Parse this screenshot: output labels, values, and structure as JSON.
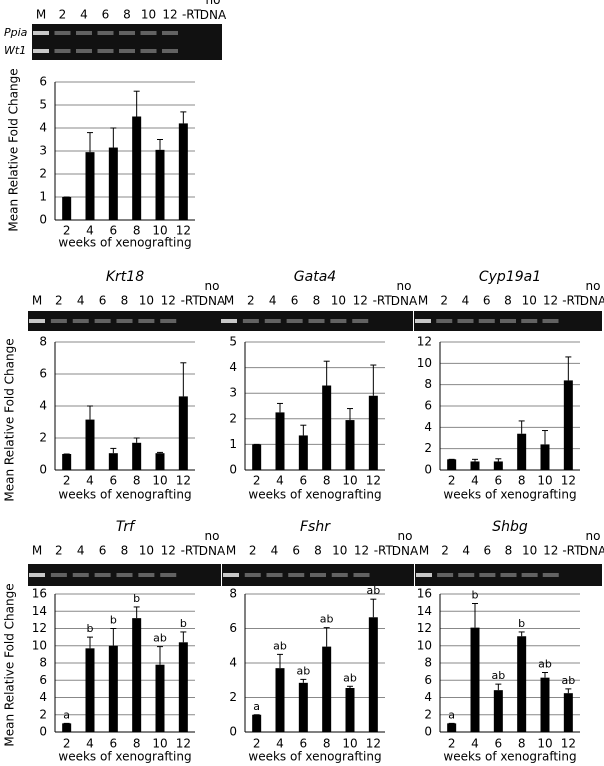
{
  "chart_data": [
    {
      "type": "bar",
      "y_label": "Mean Relative Fold Change",
      "x_label": "weeks of xenografting",
      "gel_rows": [
        "Ppia",
        "Wt1"
      ],
      "lanes": [
        "M",
        "2",
        "4",
        "6",
        "8",
        "10",
        "12",
        "-RT",
        "no DNA"
      ],
      "categories": [
        "2",
        "4",
        "6",
        "8",
        "10",
        "12"
      ],
      "series": [
        {
          "color": "#000000",
          "values": [
            1,
            2.95,
            3.15,
            4.5,
            3.05,
            4.2
          ],
          "errors": [
            0,
            0.85,
            0.85,
            1.1,
            0.45,
            0.5
          ]
        }
      ],
      "ylim": [
        0,
        6
      ],
      "yticks": [
        0,
        1,
        2,
        3,
        4,
        5,
        6
      ],
      "grid": true
    },
    {
      "type": "bar",
      "title": "Krt18",
      "y_label": "Mean Relative Fold Change",
      "x_label": "weeks of xenografting",
      "lanes": [
        "M",
        "2",
        "4",
        "6",
        "8",
        "10",
        "12",
        "-RT",
        "no DNA"
      ],
      "categories": [
        "2",
        "4",
        "6",
        "8",
        "10",
        "12"
      ],
      "series": [
        {
          "color": "#000000",
          "values": [
            1,
            3.15,
            1.05,
            1.7,
            1.05,
            4.6
          ],
          "errors": [
            0,
            0.85,
            0.3,
            0.3,
            0.05,
            2.1
          ]
        }
      ],
      "ylim": [
        0,
        8
      ],
      "yticks": [
        0,
        2,
        4,
        6,
        8
      ],
      "grid": true
    },
    {
      "type": "bar",
      "title": "Gata4",
      "x_label": "weeks of xenografting",
      "lanes": [
        "M",
        "2",
        "4",
        "6",
        "8",
        "10",
        "12",
        "-RT",
        "no DNA"
      ],
      "categories": [
        "2",
        "4",
        "6",
        "8",
        "10",
        "12"
      ],
      "series": [
        {
          "color": "#000000",
          "values": [
            1,
            2.25,
            1.35,
            3.3,
            1.95,
            2.9
          ],
          "errors": [
            0,
            0.35,
            0.4,
            0.95,
            0.45,
            1.2
          ]
        }
      ],
      "ylim": [
        0,
        5
      ],
      "yticks": [
        0,
        1,
        2,
        3,
        4,
        5
      ],
      "grid": true
    },
    {
      "type": "bar",
      "title": "Cyp19a1",
      "x_label": "weeks of xenografting",
      "lanes": [
        "M",
        "2",
        "4",
        "6",
        "8",
        "10",
        "12",
        "-RT",
        "no DNA"
      ],
      "categories": [
        "2",
        "4",
        "6",
        "8",
        "10",
        "12"
      ],
      "series": [
        {
          "color": "#000000",
          "values": [
            1,
            0.8,
            0.8,
            3.4,
            2.4,
            8.4
          ],
          "errors": [
            0,
            0.2,
            0.25,
            1.2,
            1.3,
            2.2
          ]
        }
      ],
      "ylim": [
        0,
        12
      ],
      "yticks": [
        0,
        2,
        4,
        6,
        8,
        10,
        12
      ],
      "grid": true
    },
    {
      "type": "bar",
      "title": "Trf",
      "y_label": "Mean Relative Fold Change",
      "x_label": "weeks of xenografting",
      "lanes": [
        "M",
        "2",
        "4",
        "6",
        "8",
        "10",
        "12",
        "-RT",
        "no DNA"
      ],
      "categories": [
        "2",
        "4",
        "6",
        "8",
        "10",
        "12"
      ],
      "series": [
        {
          "color": "#000000",
          "values": [
            1,
            9.7,
            10,
            13.2,
            7.8,
            10.4
          ],
          "errors": [
            0,
            1.3,
            2,
            1.3,
            2.1,
            1.2
          ]
        }
      ],
      "letters": [
        "a",
        "b",
        "b",
        "b",
        "ab",
        "b"
      ],
      "ylim": [
        0,
        16
      ],
      "yticks": [
        0,
        2,
        4,
        6,
        8,
        10,
        12,
        14,
        16
      ],
      "grid": true
    },
    {
      "type": "bar",
      "title": "Fshr",
      "x_label": "weeks of xenografting",
      "lanes": [
        "M",
        "2",
        "4",
        "6",
        "8",
        "10",
        "12",
        "-RT",
        "no DNA"
      ],
      "categories": [
        "2",
        "4",
        "6",
        "8",
        "10",
        "12"
      ],
      "series": [
        {
          "color": "#000000",
          "values": [
            1,
            3.7,
            2.85,
            4.95,
            2.55,
            6.65
          ],
          "errors": [
            0,
            0.8,
            0.2,
            1.1,
            0.1,
            1.05
          ]
        }
      ],
      "letters": [
        "a",
        "ab",
        "ab",
        "ab",
        "ab",
        "ab"
      ],
      "ylim": [
        0,
        8
      ],
      "yticks": [
        0,
        2,
        4,
        6,
        8
      ],
      "grid": true
    },
    {
      "type": "bar",
      "title": "Shbg",
      "x_label": "weeks of xenografting",
      "lanes": [
        "M",
        "2",
        "4",
        "6",
        "8",
        "10",
        "12",
        "-RT",
        "no DNA"
      ],
      "categories": [
        "2",
        "4",
        "6",
        "8",
        "10",
        "12"
      ],
      "series": [
        {
          "color": "#000000",
          "values": [
            1,
            12.1,
            4.85,
            11.1,
            6.3,
            4.5
          ],
          "errors": [
            0,
            2.8,
            0.7,
            0.5,
            0.6,
            0.5
          ]
        }
      ],
      "letters": [
        "a",
        "b",
        "ab",
        "b",
        "ab",
        "ab"
      ],
      "ylim": [
        0,
        16
      ],
      "yticks": [
        0,
        2,
        4,
        6,
        8,
        10,
        12,
        14,
        16
      ],
      "grid": true
    }
  ]
}
